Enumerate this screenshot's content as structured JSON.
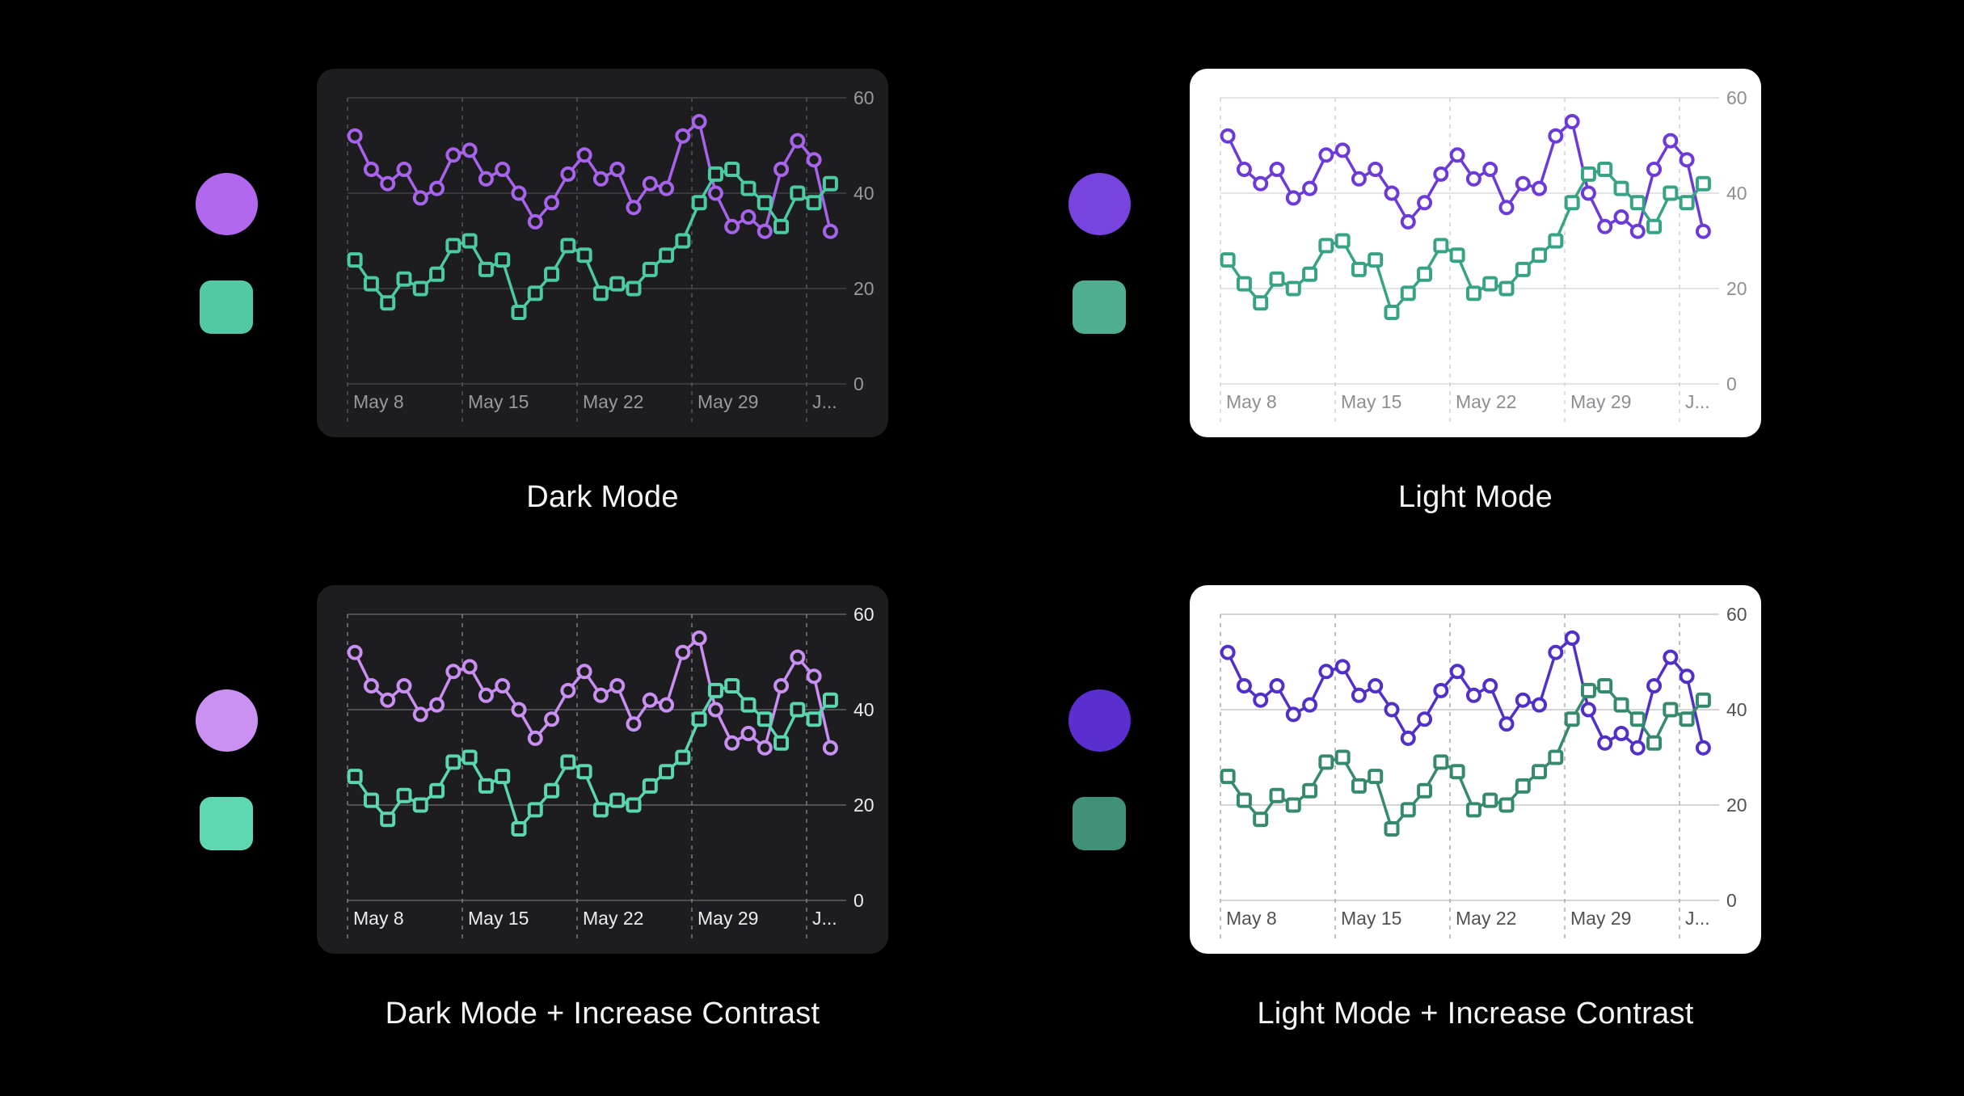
{
  "page": {
    "background": "#000000",
    "caption_color": "#f5f5f7"
  },
  "chart_data": {
    "type": "line",
    "title": "",
    "xlabel": "",
    "ylabel": "",
    "ylim": [
      0,
      60
    ],
    "y_ticks": [
      60,
      40,
      20,
      0
    ],
    "y_tick_side": "right",
    "x_tick_labels": [
      "May 8",
      "May 15",
      "May 22",
      "May 29",
      "J..."
    ],
    "grid": {
      "horizontal": "solid",
      "vertical": "dashed"
    },
    "legend_position": "left-swatches",
    "series": [
      {
        "name": "purple-series",
        "marker": "circle",
        "values": [
          52,
          45,
          42,
          45,
          39,
          41,
          48,
          49,
          43,
          45,
          40,
          34,
          38,
          44,
          48,
          43,
          45,
          37,
          42,
          41,
          52,
          55,
          40,
          33,
          35,
          32,
          45,
          51,
          47,
          32
        ]
      },
      {
        "name": "teal-series",
        "marker": "square",
        "values": [
          26,
          21,
          17,
          22,
          20,
          23,
          29,
          30,
          24,
          26,
          15,
          19,
          23,
          29,
          27,
          19,
          21,
          20,
          24,
          27,
          30,
          38,
          44,
          45,
          41,
          38,
          33,
          40,
          38,
          42
        ]
      }
    ]
  },
  "panels": [
    {
      "caption": "Dark Mode",
      "card_bg": "#1d1d1f",
      "line_purple": "#a863ec",
      "line_teal": "#4bcaa4",
      "swatch_circle": "#b268ee",
      "swatch_square": "#52c8a4",
      "grid_color": "#424246",
      "dash_color": "#55555a",
      "tick_color": "#98989d"
    },
    {
      "caption": "Light Mode",
      "card_bg": "#ffffff",
      "line_purple": "#6b3ad9",
      "line_teal": "#37a284",
      "swatch_circle": "#7843de",
      "swatch_square": "#4fae91",
      "grid_color": "#dcdce0",
      "dash_color": "#d2d2d6",
      "tick_color": "#8e8e93"
    },
    {
      "caption": "Dark Mode + Increase Contrast",
      "card_bg": "#1d1d1f",
      "line_purple": "#c98ff2",
      "line_teal": "#5bd6b1",
      "swatch_circle": "#ca90f2",
      "swatch_square": "#5ed8b2",
      "grid_color": "#626267",
      "dash_color": "#7b7b81",
      "tick_color": "#ebebf0"
    },
    {
      "caption": "Light Mode + Increase Contrast",
      "card_bg": "#ffffff",
      "line_purple": "#5130c9",
      "line_teal": "#35896d",
      "swatch_circle": "#5b2ed0",
      "swatch_square": "#41917a",
      "grid_color": "#c7c7cc",
      "dash_color": "#ababb1",
      "tick_color": "#515156"
    }
  ]
}
